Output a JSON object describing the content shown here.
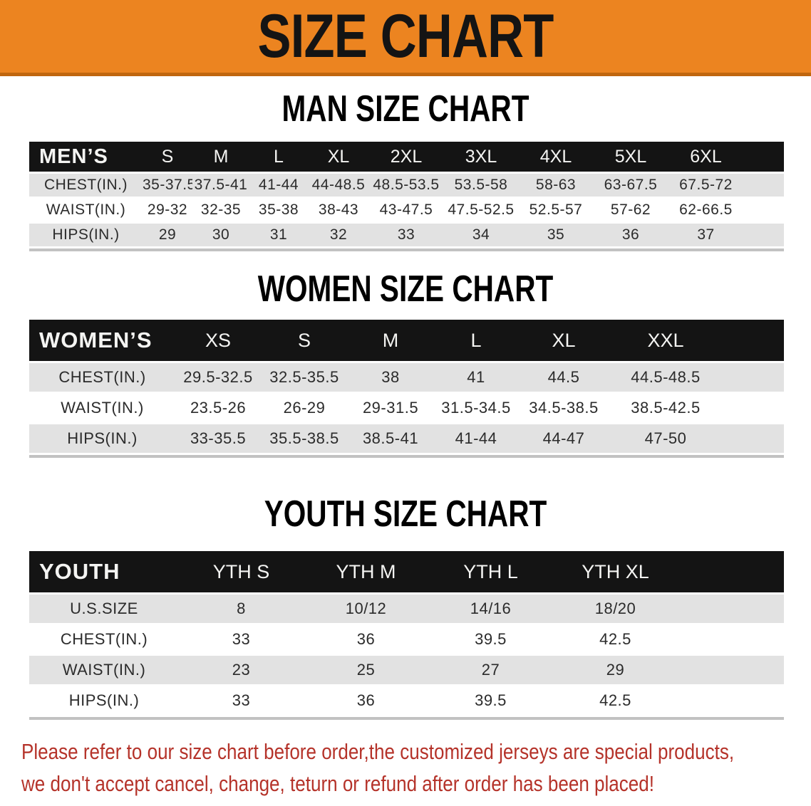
{
  "banner": {
    "title": "SIZE CHART",
    "background_color": "#EC8420",
    "border_color": "#C0660E"
  },
  "colors": {
    "table_header_bg": "#141414",
    "row_stripe_gray": "#E2E2E2",
    "disclaimer_red": "#B5332A"
  },
  "sections": [
    {
      "heading": "MAN SIZE CHART",
      "label": "MEN’S",
      "columns": [
        "S",
        "M",
        "L",
        "XL",
        "2XL",
        "3XL",
        "4XL",
        "5XL",
        "6XL"
      ],
      "rows": [
        {
          "label": "CHEST(IN.)",
          "values": [
            "35-37.5",
            "37.5-41",
            "41-44",
            "44-48.5",
            "48.5-53.5",
            "53.5-58",
            "58-63",
            "63-67.5",
            "67.5-72"
          ]
        },
        {
          "label": "WAIST(IN.)",
          "values": [
            "29-32",
            "32-35",
            "35-38",
            "38-43",
            "43-47.5",
            "47.5-52.5",
            "52.5-57",
            "57-62",
            "62-66.5"
          ]
        },
        {
          "label": "HIPS(IN.)",
          "values": [
            "29",
            "30",
            "31",
            "32",
            "33",
            "34",
            "35",
            "36",
            "37"
          ]
        }
      ]
    },
    {
      "heading": "WOMEN SIZE CHART",
      "label": "WOMEN’S",
      "columns": [
        "XS",
        "S",
        "M",
        "L",
        "XL",
        "XXL"
      ],
      "rows": [
        {
          "label": "CHEST(IN.)",
          "values": [
            "29.5-32.5",
            "32.5-35.5",
            "38",
            "41",
            "44.5",
            "44.5-48.5"
          ]
        },
        {
          "label": "WAIST(IN.)",
          "values": [
            "23.5-26",
            "26-29",
            "29-31.5",
            "31.5-34.5",
            "34.5-38.5",
            "38.5-42.5"
          ]
        },
        {
          "label": "HIPS(IN.)",
          "values": [
            "33-35.5",
            "35.5-38.5",
            "38.5-41",
            "41-44",
            "44-47",
            "47-50"
          ]
        }
      ]
    },
    {
      "heading": "YOUTH SIZE CHART",
      "label": "YOUTH",
      "columns": [
        "YTH S",
        "YTH M",
        "YTH L",
        "YTH XL"
      ],
      "rows": [
        {
          "label": "U.S.SIZE",
          "values": [
            "8",
            "10/12",
            "14/16",
            "18/20"
          ]
        },
        {
          "label": "CHEST(IN.)",
          "values": [
            "33",
            "36",
            "39.5",
            "42.5"
          ]
        },
        {
          "label": "WAIST(IN.)",
          "values": [
            "23",
            "25",
            "27",
            "29"
          ]
        },
        {
          "label": "HIPS(IN.)",
          "values": [
            "33",
            "36",
            "39.5",
            "42.5"
          ]
        }
      ]
    }
  ],
  "disclaimer": {
    "line1": "Please refer to our size chart before order,the customized jerseys are special products,",
    "line2": "we don't accept cancel, change, teturn or refund after order has been placed!"
  }
}
